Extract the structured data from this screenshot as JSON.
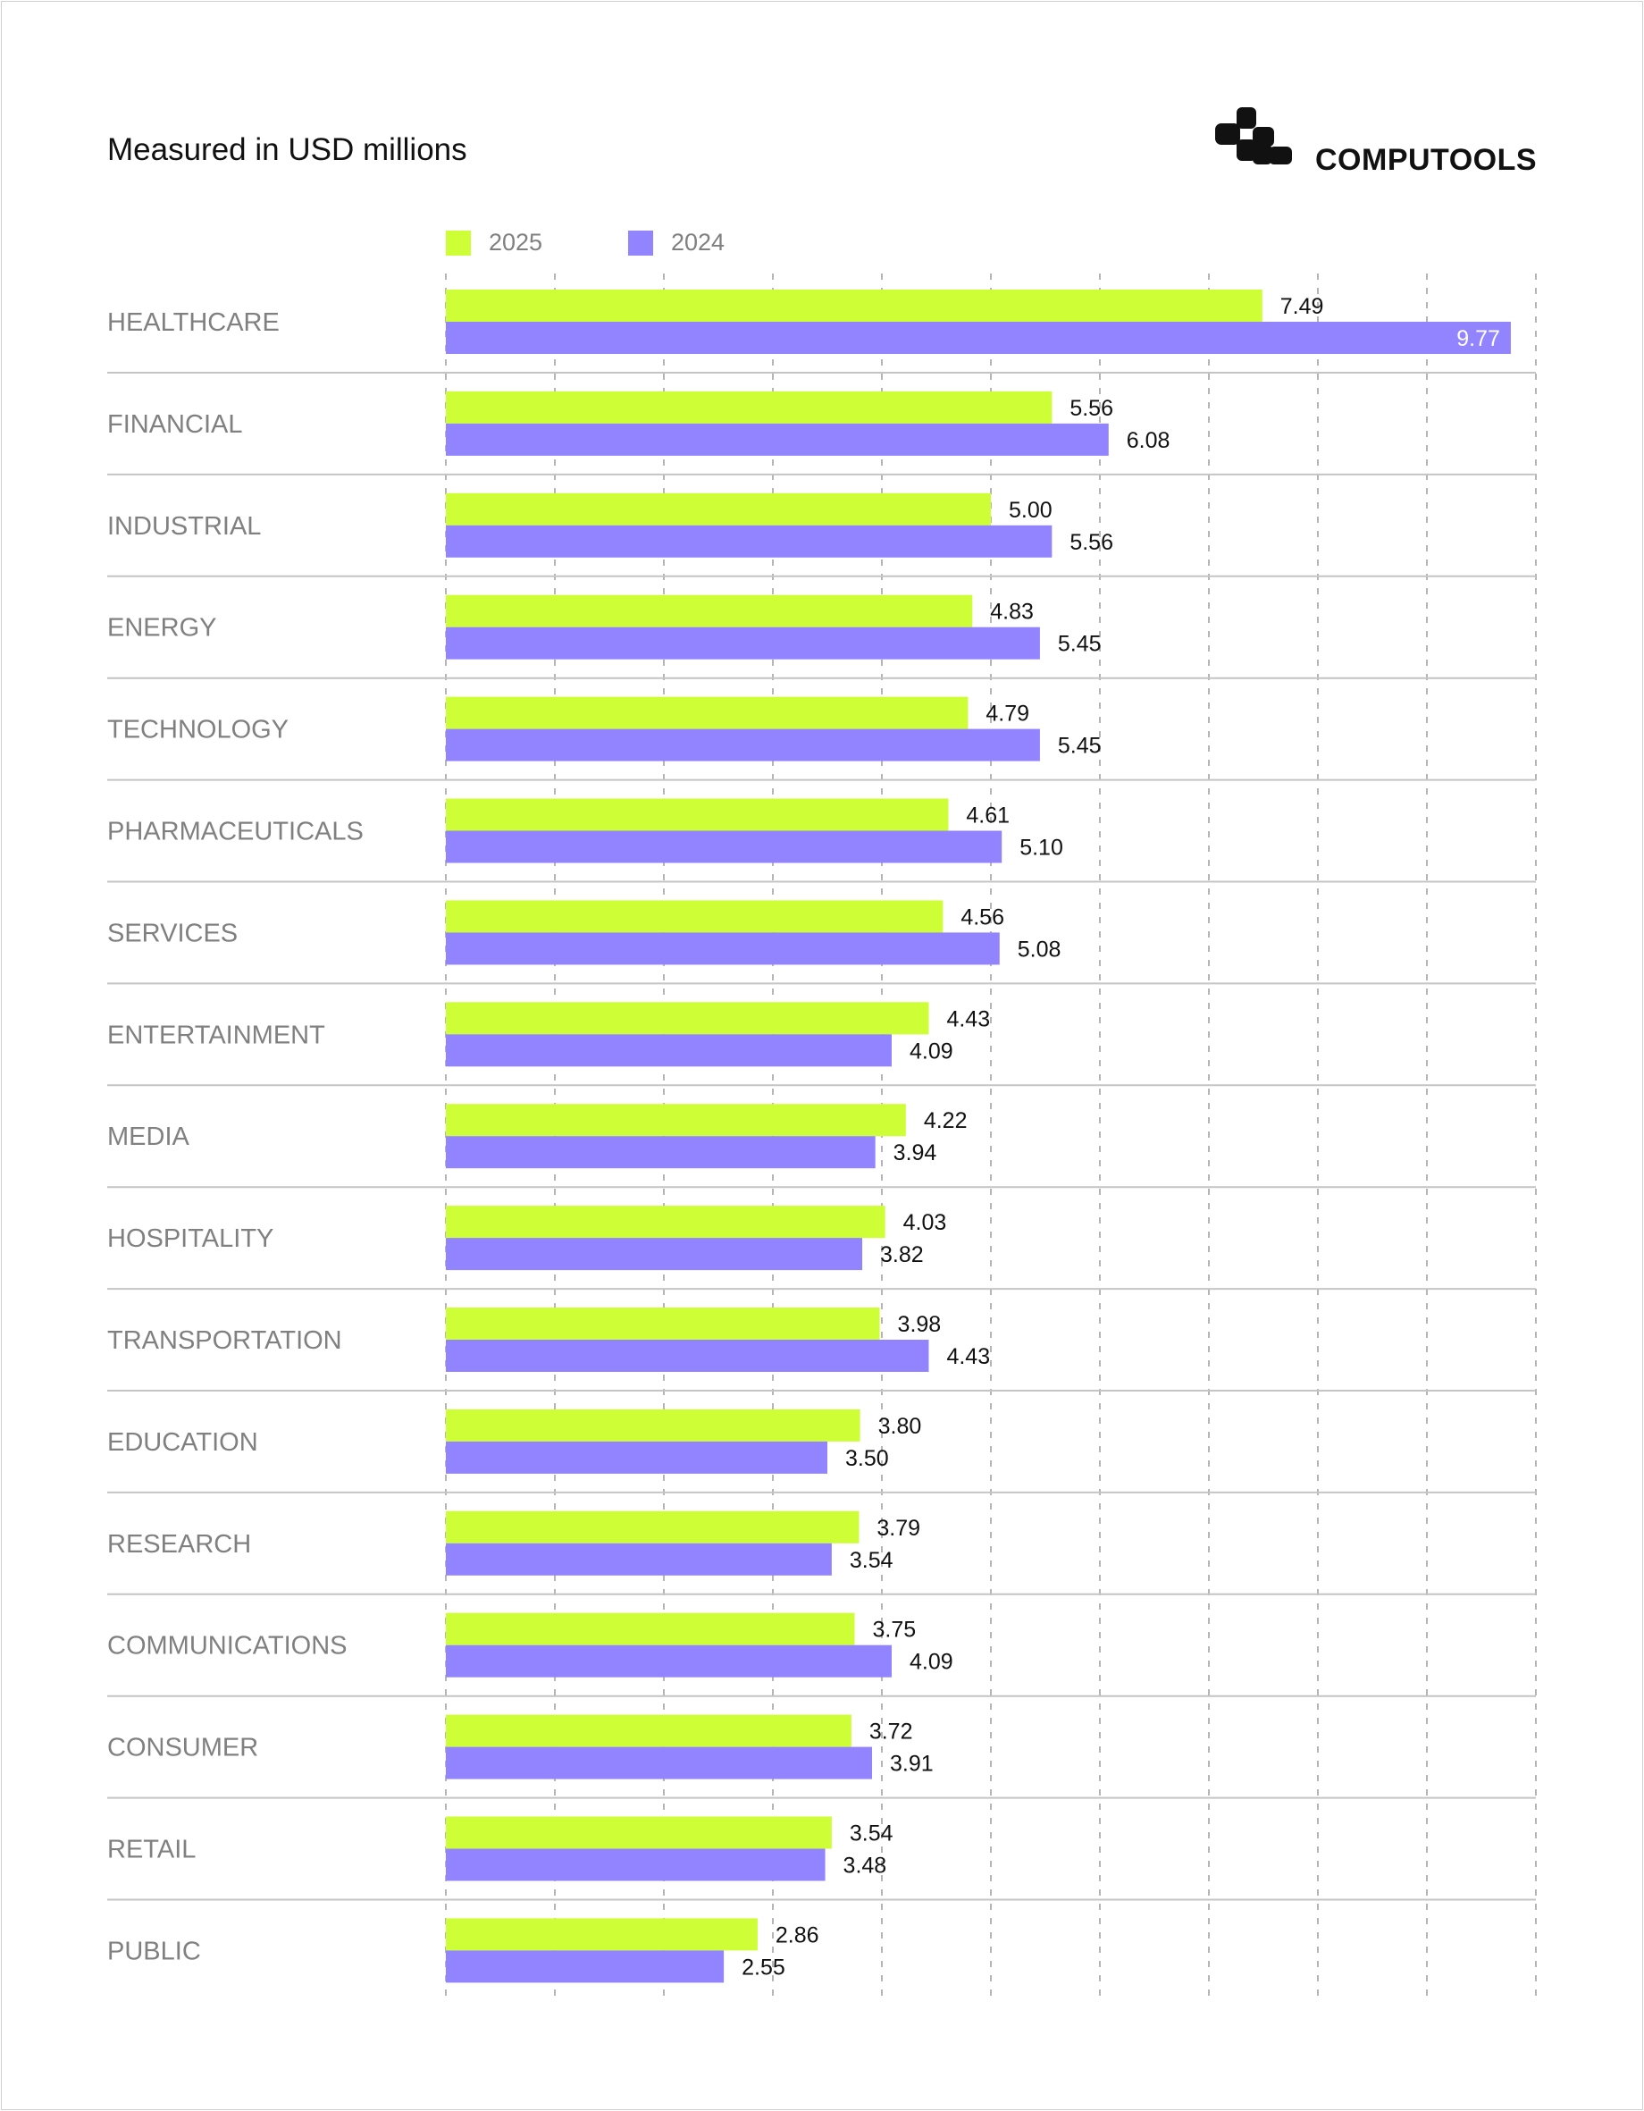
{
  "title": "Measured in USD millions",
  "brand": {
    "name": "COMPUTOOLS",
    "icon": "computools-logo-icon"
  },
  "chart_data": {
    "type": "bar",
    "orientation": "horizontal",
    "title": "Measured in USD millions",
    "categories": [
      "HEALTHCARE",
      "FINANCIAL",
      "INDUSTRIAL",
      "ENERGY",
      "TECHNOLOGY",
      "PHARMACEUTICALS",
      "SERVICES",
      "ENTERTAINMENT",
      "MEDIA",
      "HOSPITALITY",
      "TRANSPORTATION",
      "EDUCATION",
      "RESEARCH",
      "COMMUNICATIONS",
      "CONSUMER",
      "RETAIL",
      "PUBLIC"
    ],
    "series": [
      {
        "name": "2025",
        "color": "#ceff36",
        "values": [
          7.49,
          5.56,
          5.0,
          4.83,
          4.79,
          4.61,
          4.56,
          4.43,
          4.22,
          4.03,
          3.98,
          3.8,
          3.79,
          3.75,
          3.72,
          3.54,
          2.86
        ]
      },
      {
        "name": "2024",
        "color": "#9283ff",
        "values": [
          9.77,
          6.08,
          5.56,
          5.45,
          5.45,
          5.1,
          5.08,
          4.09,
          3.94,
          3.82,
          4.43,
          3.5,
          3.54,
          4.09,
          3.91,
          3.48,
          2.55
        ]
      }
    ],
    "xlim": [
      0,
      10
    ],
    "grid": true,
    "legend": "top",
    "data_labels": true
  }
}
